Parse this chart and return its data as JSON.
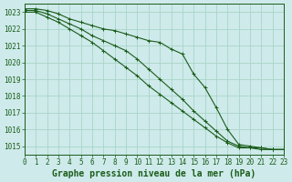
{
  "title": "Graphe pression niveau de la mer (hPa)",
  "background_color": "#ceeaea",
  "grid_color": "#a8d5c8",
  "line_color": "#1a5c1a",
  "xlim": [
    0,
    23
  ],
  "ylim": [
    1014.5,
    1023.5
  ],
  "yticks": [
    1015,
    1016,
    1017,
    1018,
    1019,
    1020,
    1021,
    1022,
    1023
  ],
  "xticks": [
    0,
    1,
    2,
    3,
    4,
    5,
    6,
    7,
    8,
    9,
    10,
    11,
    12,
    13,
    14,
    15,
    16,
    17,
    18,
    19,
    20,
    21,
    22,
    23
  ],
  "series": [
    [
      1023.2,
      1023.2,
      1023.1,
      1022.9,
      1022.6,
      1022.4,
      1022.2,
      1022.0,
      1021.9,
      1021.7,
      1021.5,
      1021.3,
      1021.2,
      1020.8,
      1020.5,
      1019.3,
      1018.5,
      1017.3,
      1016.0,
      1015.1,
      1015.0,
      1014.9,
      1014.8,
      1014.8
    ],
    [
      1023.1,
      1023.1,
      1022.9,
      1022.6,
      1022.3,
      1022.0,
      1021.6,
      1021.3,
      1021.0,
      1020.7,
      1020.2,
      1019.6,
      1019.0,
      1018.4,
      1017.8,
      1017.1,
      1016.5,
      1015.9,
      1015.3,
      1015.0,
      1014.9,
      1014.9,
      1014.8,
      1014.8
    ],
    [
      1023.0,
      1023.0,
      1022.7,
      1022.4,
      1022.0,
      1021.6,
      1021.2,
      1020.7,
      1020.2,
      1019.7,
      1019.2,
      1018.6,
      1018.1,
      1017.6,
      1017.1,
      1016.6,
      1016.1,
      1015.6,
      1015.2,
      1014.9,
      1014.9,
      1014.8,
      1014.8,
      1014.8
    ]
  ],
  "title_fontsize": 7,
  "tick_fontsize": 5.5,
  "title_color": "#1a5c1a",
  "tick_color": "#1a5c1a"
}
